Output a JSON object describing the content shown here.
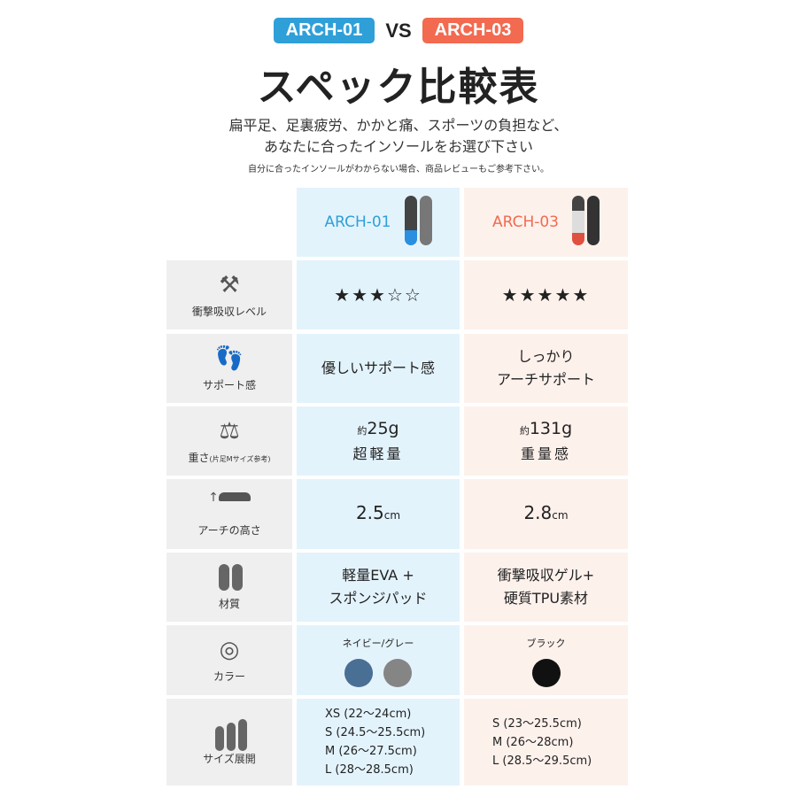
{
  "header": {
    "badge_a": "ARCH-01",
    "vs": "VS",
    "badge_b": "ARCH-03",
    "title": "スペック比較表",
    "subtitle_1": "扁平足、足裏疲労、かかと痛、スポーツの負担など、",
    "subtitle_2": "あなたに合ったインソールをお選び下さい",
    "note": "自分に合ったインソールがわからない場合、商品レビューもご参考下さい。"
  },
  "colors": {
    "blue": "#2f9fd8",
    "orange": "#f26a4f"
  },
  "columns": [
    {
      "name": "ARCH-01"
    },
    {
      "name": "ARCH-03"
    }
  ],
  "rows": [
    {
      "label": "衝撃吸収レベル",
      "icon": "hammer-icon",
      "a": "★★★☆☆",
      "b": "★★★★★",
      "rating_a": 3,
      "rating_b": 5
    },
    {
      "label": "サポート感",
      "icon": "footprints-icon",
      "a": "優しいサポート感",
      "b1": "しっかり",
      "b2": "アーチサポート"
    },
    {
      "label": "重さ",
      "label_small": "(片足Mサイズ参考)",
      "icon": "scale-icon",
      "a_pre": "約",
      "a_num": "25g",
      "a2": "超軽量",
      "b_pre": "約",
      "b_num": "131g",
      "b2": "重量感"
    },
    {
      "label": "アーチの高さ",
      "icon": "arch-icon",
      "a_num": "2.5",
      "a_unit": "cm",
      "b_num": "2.8",
      "b_unit": "cm"
    },
    {
      "label": "材質",
      "icon": "insole-icon",
      "a1": "軽量EVA +",
      "a2": "スポンジパッド",
      "b1": "衝撃吸収ゲル+",
      "b2": "硬質TPU素材"
    },
    {
      "label": "カラー",
      "icon": "color-icon",
      "a": "ネイビー/グレー",
      "b": "ブラック",
      "a_colors": [
        "#4a6f95",
        "#858585"
      ],
      "b_colors": [
        "#111111"
      ]
    },
    {
      "label": "サイズ展開",
      "icon": "sizes-icon",
      "a": [
        "XS (22〜24cm)",
        "S (24.5〜25.5cm)",
        "M (26〜27.5cm)",
        "L (28〜28.5cm)"
      ],
      "b": [
        "S (23〜25.5cm)",
        "M (26〜28cm)",
        "L (28.5〜29.5cm)"
      ]
    }
  ]
}
